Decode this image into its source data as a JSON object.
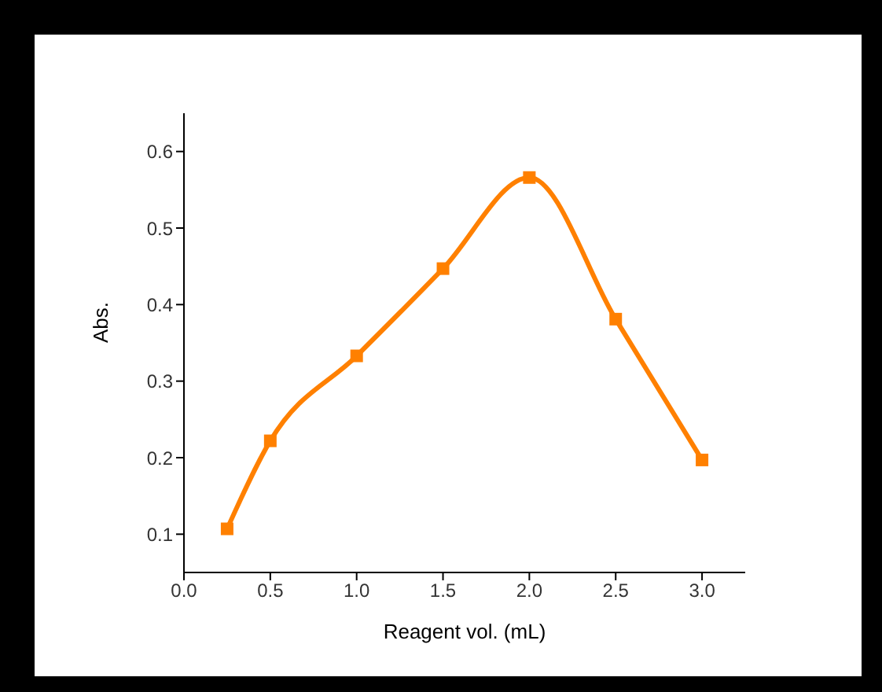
{
  "chart_data": {
    "type": "line",
    "xlabel": "Reagent vol. (mL)",
    "ylabel": "Abs.",
    "x": [
      0.25,
      0.5,
      1.0,
      1.5,
      2.0,
      2.5,
      3.0
    ],
    "series": [
      {
        "color": "#ff8000",
        "values": [
          0.107,
          0.222,
          0.333,
          0.447,
          0.566,
          0.381,
          0.197
        ]
      }
    ],
    "xlim": [
      0,
      3.25
    ],
    "xticks": [
      {
        "value": 0,
        "label": "0.0"
      },
      0.5,
      {
        "value": 1,
        "label": "1.0"
      },
      1.5,
      {
        "value": 2,
        "label": "2.0"
      },
      2.5,
      {
        "value": 3,
        "label": "3.0"
      }
    ],
    "ylim": [
      0.05,
      0.65
    ],
    "yticks": [
      0.1,
      0.2,
      0.3,
      0.4,
      0.5,
      0.6
    ],
    "grid": false,
    "legend": false,
    "marker": "square",
    "line_style": "solid"
  }
}
